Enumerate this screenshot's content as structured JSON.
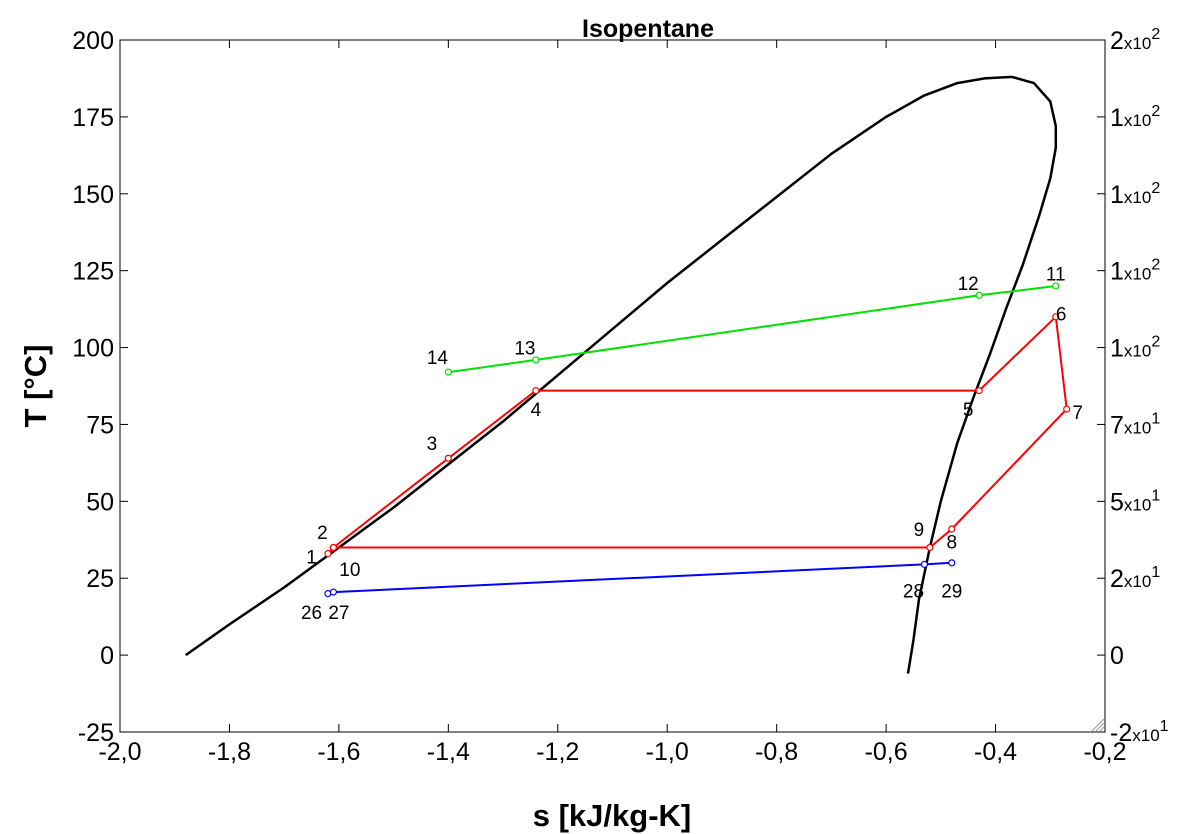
{
  "chart_data": {
    "type": "line",
    "title": "Isopentane",
    "xlabel": "s [kJ/kg-K]",
    "ylabel": "T [°C]",
    "xlim": [
      -2.0,
      -0.2
    ],
    "ylim": [
      -25,
      200
    ],
    "x_ticks": [
      -2.0,
      -1.8,
      -1.6,
      -1.4,
      -1.2,
      -1.0,
      -0.8,
      -0.6,
      -0.4,
      -0.2
    ],
    "x_tick_labels": [
      "-2,0",
      "-1,8",
      "-1,6",
      "-1,4",
      "-1,2",
      "-1,0",
      "-0,8",
      "-0,6",
      "-0,4",
      "-0,2"
    ],
    "y_ticks": [
      -25,
      0,
      25,
      50,
      75,
      100,
      125,
      150,
      175,
      200
    ],
    "y_tick_labels": [
      "-25",
      "0",
      "25",
      "50",
      "75",
      "100",
      "125",
      "150",
      "175",
      "200"
    ],
    "right_ticks": [
      {
        "y": 200,
        "mantissa": "2",
        "exp": "2"
      },
      {
        "y": 175,
        "mantissa": "1",
        "exp": "2"
      },
      {
        "y": 150,
        "mantissa": "1",
        "exp": "2"
      },
      {
        "y": 125,
        "mantissa": "1",
        "exp": "2"
      },
      {
        "y": 100,
        "mantissa": "1",
        "exp": "2"
      },
      {
        "y": 75,
        "mantissa": "7",
        "exp": "1"
      },
      {
        "y": 50,
        "mantissa": "5",
        "exp": "1"
      },
      {
        "y": 25,
        "mantissa": "2",
        "exp": "1"
      },
      {
        "y": 0,
        "mantissa": "0",
        "exp": ""
      },
      {
        "y": -25,
        "mantissa": "-2",
        "exp": "1"
      }
    ],
    "grid": false,
    "series": [
      {
        "color": "#000000",
        "markers": false,
        "points": [
          [
            -1.88,
            0
          ],
          [
            -1.8,
            10
          ],
          [
            -1.7,
            22
          ],
          [
            -1.6,
            35
          ],
          [
            -1.5,
            48
          ],
          [
            -1.4,
            62
          ],
          [
            -1.3,
            76
          ],
          [
            -1.2,
            91
          ],
          [
            -1.1,
            106
          ],
          [
            -1.0,
            121
          ],
          [
            -0.9,
            135
          ],
          [
            -0.8,
            149
          ],
          [
            -0.7,
            163
          ],
          [
            -0.6,
            175
          ],
          [
            -0.53,
            182
          ],
          [
            -0.47,
            186
          ],
          [
            -0.42,
            187.5
          ],
          [
            -0.37,
            188
          ],
          [
            -0.33,
            186
          ],
          [
            -0.3,
            180
          ],
          [
            -0.29,
            172
          ],
          [
            -0.29,
            165
          ],
          [
            -0.3,
            155
          ],
          [
            -0.32,
            143
          ],
          [
            -0.35,
            127
          ],
          [
            -0.38,
            113
          ],
          [
            -0.41,
            98
          ],
          [
            -0.44,
            84
          ],
          [
            -0.47,
            69
          ],
          [
            -0.5,
            50
          ],
          [
            -0.52,
            35
          ],
          [
            -0.54,
            18
          ],
          [
            -0.55,
            5
          ],
          [
            -0.56,
            -6
          ]
        ]
      },
      {
        "color": "#ff0000",
        "markers": true,
        "points": [
          [
            -1.62,
            33
          ],
          [
            -1.61,
            35
          ],
          [
            -1.4,
            64
          ],
          [
            -1.24,
            86
          ],
          [
            -0.43,
            86
          ],
          [
            -0.29,
            110
          ],
          [
            -0.27,
            80
          ],
          [
            -0.48,
            41
          ],
          [
            -0.52,
            35
          ],
          [
            -1.61,
            35
          ]
        ]
      },
      {
        "color": "#00e000",
        "markers": true,
        "points": [
          [
            -1.4,
            92
          ],
          [
            -1.24,
            96
          ],
          [
            -0.43,
            117
          ],
          [
            -0.29,
            120
          ]
        ]
      },
      {
        "color": "#0000ff",
        "markers": true,
        "points": [
          [
            -1.62,
            20
          ],
          [
            -1.61,
            20.5
          ],
          [
            -0.53,
            29.5
          ],
          [
            -0.48,
            30
          ]
        ]
      }
    ],
    "annotations": [
      {
        "text": "1",
        "x": -1.65,
        "y": 32
      },
      {
        "text": "2",
        "x": -1.63,
        "y": 40
      },
      {
        "text": "3",
        "x": -1.43,
        "y": 69
      },
      {
        "text": "4",
        "x": -1.24,
        "y": 80
      },
      {
        "text": "5",
        "x": -0.45,
        "y": 80
      },
      {
        "text": "6",
        "x": -0.28,
        "y": 111
      },
      {
        "text": "7",
        "x": -0.25,
        "y": 79
      },
      {
        "text": "8",
        "x": -0.48,
        "y": 37
      },
      {
        "text": "9",
        "x": -0.54,
        "y": 41
      },
      {
        "text": "10",
        "x": -1.58,
        "y": 28
      },
      {
        "text": "11",
        "x": -0.29,
        "y": 124
      },
      {
        "text": "12",
        "x": -0.45,
        "y": 121
      },
      {
        "text": "13",
        "x": -1.26,
        "y": 100
      },
      {
        "text": "14",
        "x": -1.42,
        "y": 97
      },
      {
        "text": "26",
        "x": -1.65,
        "y": 14
      },
      {
        "text": "27",
        "x": -1.6,
        "y": 14
      },
      {
        "text": "28",
        "x": -0.55,
        "y": 21
      },
      {
        "text": "29",
        "x": -0.48,
        "y": 21
      }
    ]
  }
}
